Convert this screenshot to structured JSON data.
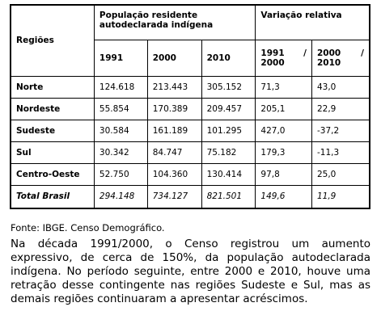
{
  "table": {
    "header": {
      "region": "Regiões",
      "population": "População residente autodeclarada indígena",
      "variation": "Variação relativa",
      "years": [
        "1991",
        "2000",
        "2010",
        "1991 / 2000",
        "2000 / 2010"
      ]
    },
    "rows": [
      [
        "Norte",
        "124.618",
        "213.443",
        "305.152",
        "71,3",
        "43,0"
      ],
      [
        "Nordeste",
        "55.854",
        "170.389",
        "209.457",
        "205,1",
        "22,9"
      ],
      [
        "Sudeste",
        "30.584",
        "161.189",
        "101.295",
        "427,0",
        "-37,2"
      ],
      [
        "Sul",
        "30.342",
        "84.747",
        "75.182",
        "179,3",
        "-11,3"
      ],
      [
        "Centro-Oeste",
        "52.750",
        "104.360",
        "130.414",
        "97,8",
        "25,0"
      ],
      [
        "Total Brasil",
        "294.148",
        "734.127",
        "821.501",
        "149,6",
        "11,9"
      ]
    ]
  },
  "source": "Fonte: IBGE. Censo Demográfico.",
  "paragraph": "Na década 1991/2000, o Censo registrou um aumento expressivo, de cerca de 150%, da população autodeclarada indígena. No período seguinte, entre 2000 e 2010, houve uma retração desse contingente nas regiões Sudeste e Sul, mas as demais regiões continuaram a apresentar acréscimos."
}
